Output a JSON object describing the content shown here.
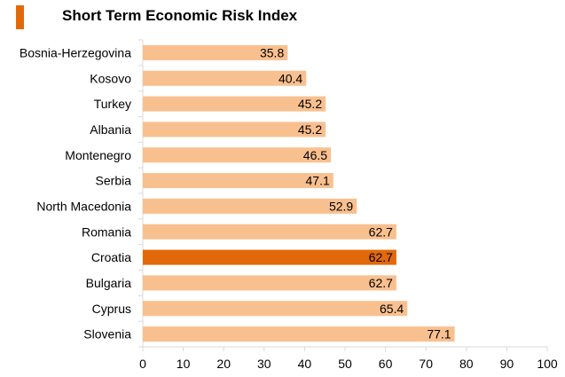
{
  "colors": {
    "bar": "#f9c08f",
    "highlight": "#e2690a",
    "title_accent": "#e2690a",
    "axis": "#d9d9d9",
    "text": "#000000"
  },
  "chart_data": {
    "type": "bar",
    "orientation": "horizontal",
    "title": "Short Term Economic Risk Index",
    "categories": [
      "Bosnia-Herzegovina",
      "Kosovo",
      "Turkey",
      "Albania",
      "Montenegro",
      "Serbia",
      "North Macedonia",
      "Romania",
      "Croatia",
      "Bulgaria",
      "Cyprus",
      "Slovenia"
    ],
    "values": [
      35.8,
      40.4,
      45.2,
      45.2,
      46.5,
      47.1,
      52.9,
      62.7,
      62.7,
      62.7,
      65.4,
      77.1
    ],
    "value_labels": [
      "35.8",
      "40.4",
      "45.2",
      "45.2",
      "46.5",
      "47.1",
      "52.9",
      "62.7",
      "62.7",
      "62.7",
      "65.4",
      "77.1"
    ],
    "highlight": "Croatia",
    "xlim": [
      0,
      100
    ],
    "xticks": [
      0,
      10,
      20,
      30,
      40,
      50,
      60,
      70,
      80,
      90,
      100
    ],
    "xtick_labels": [
      "0",
      "10",
      "20",
      "30",
      "40",
      "50",
      "60",
      "70",
      "80",
      "90",
      "100"
    ],
    "xlabel": "",
    "ylabel": "",
    "grid": false,
    "legend": "none"
  }
}
